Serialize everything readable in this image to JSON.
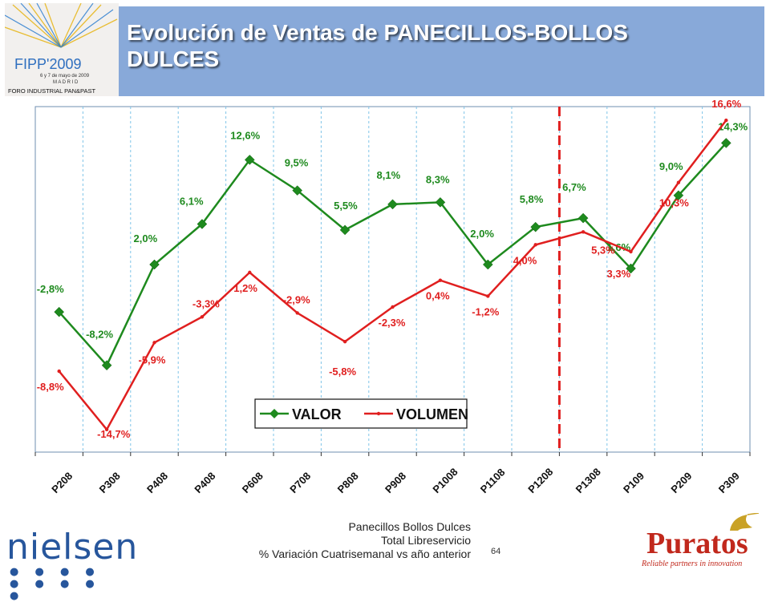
{
  "header": {
    "title_line1": "Evolución de Ventas de PANECILLOS-BOLLOS",
    "title_line2": "DULCES"
  },
  "logo": {
    "fipp_text": "FIPP'2009",
    "fipp_date": "6 y 7 de mayo de 2009",
    "fipp_city": "M A D R I D",
    "fipp_forum": "FORO INDUSTRIAL PAN&PAST"
  },
  "chart_data": {
    "type": "line",
    "categories": [
      "P208",
      "P308",
      "P408",
      "P408",
      "P608",
      "P708",
      "P808",
      "P908",
      "P1008",
      "P1108",
      "P1208",
      "P1308",
      "P109",
      "P209",
      "P309"
    ],
    "series": [
      {
        "name": "VALOR",
        "color": "#1e8a1e",
        "marker": "diamond",
        "values": [
          -2.8,
          -8.2,
          2.0,
          6.1,
          12.6,
          9.5,
          5.5,
          8.1,
          8.3,
          2.0,
          5.8,
          6.7,
          1.6,
          9.0,
          14.3
        ],
        "labels": [
          "-2,8%",
          "-8,2%",
          "2,0%",
          "6,1%",
          "12,6%",
          "9,5%",
          "5,5%",
          "8,1%",
          "8,3%",
          "2,0%",
          "5,8%",
          "6,7%",
          "1,6%",
          "9,0%",
          "14,3%"
        ]
      },
      {
        "name": "VOLUMEN",
        "color": "#e01f1f",
        "marker": "dot",
        "values": [
          -8.8,
          -14.7,
          -5.9,
          -3.3,
          1.2,
          -2.9,
          -5.8,
          -2.3,
          0.4,
          -1.2,
          4.0,
          5.3,
          3.3,
          10.3,
          16.6
        ],
        "labels": [
          "-8,8%",
          "-14,7%",
          "-5,9%",
          "-3,3%",
          "1,2%",
          "-2,9%",
          "-5,8%",
          "-2,3%",
          "0,4%",
          "-1,2%",
          "4,0%",
          "5,3%",
          "3,3%",
          "10,3%",
          "16,6%"
        ]
      }
    ],
    "legend_position": "bottom-center",
    "grid": "vertical-dashed",
    "divider_after_category": "P1208",
    "divider_color": "#e01f1f"
  },
  "footer": {
    "line1": "Panecillos Bollos Dulces",
    "line2": "Total Libreservicio",
    "line3": "% Variación Cuatrisemanal vs año anterior",
    "page_number": "64"
  },
  "brands": {
    "nielsen": "nielsen",
    "puratos": "Puratos",
    "puratos_tagline": "Reliable partners in innovation"
  }
}
